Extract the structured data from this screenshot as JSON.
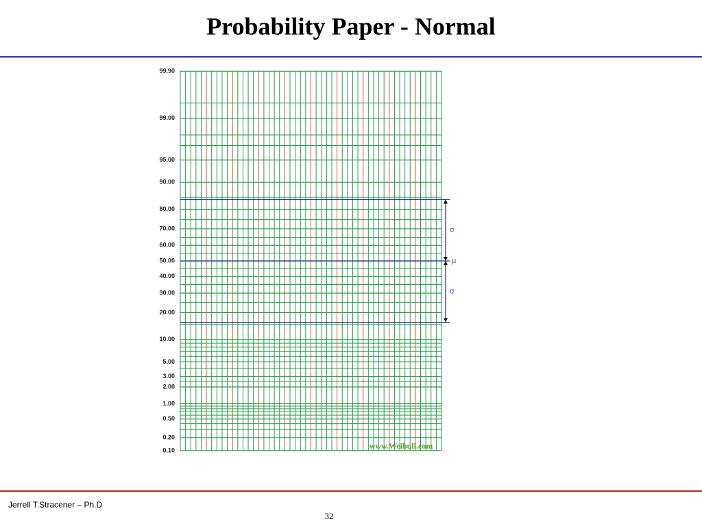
{
  "slide": {
    "title": "Probability Paper - Normal",
    "author": "Jerrell T.Stracener – Ph.D",
    "page": "32"
  },
  "paper": {
    "yticks": [
      {
        "value": 99.9,
        "label": "99.90"
      },
      {
        "value": 99,
        "label": "99.00"
      },
      {
        "value": 95,
        "label": "95.00"
      },
      {
        "value": 90,
        "label": "90.00"
      },
      {
        "value": 80,
        "label": "80.00"
      },
      {
        "value": 70,
        "label": "70.00"
      },
      {
        "value": 60,
        "label": "60.00"
      },
      {
        "value": 50,
        "label": "50.00"
      },
      {
        "value": 40,
        "label": "40.00"
      },
      {
        "value": 30,
        "label": "30.00"
      },
      {
        "value": 20,
        "label": "20.00"
      },
      {
        "value": 10,
        "label": "10.00"
      },
      {
        "value": 5,
        "label": "5.00"
      },
      {
        "value": 3,
        "label": "3.00"
      },
      {
        "value": 2,
        "label": "2.00"
      },
      {
        "value": 1,
        "label": "1.00"
      },
      {
        "value": 0.5,
        "label": "0.50"
      },
      {
        "value": 0.2,
        "label": "0.20"
      },
      {
        "value": 0.1,
        "label": "0.10"
      }
    ],
    "minor_lines": [
      99.5,
      98,
      97,
      85,
      75,
      65,
      55,
      45,
      35,
      25,
      15,
      9,
      8,
      7,
      6,
      4,
      2.5,
      0.9,
      0.8,
      0.7,
      0.6,
      0.4,
      0.3
    ],
    "sigma_lines": [
      84.13,
      15.87
    ],
    "sigma_label": "σ",
    "mu_label": "μ",
    "watermark": "www.Weibull.com"
  }
}
